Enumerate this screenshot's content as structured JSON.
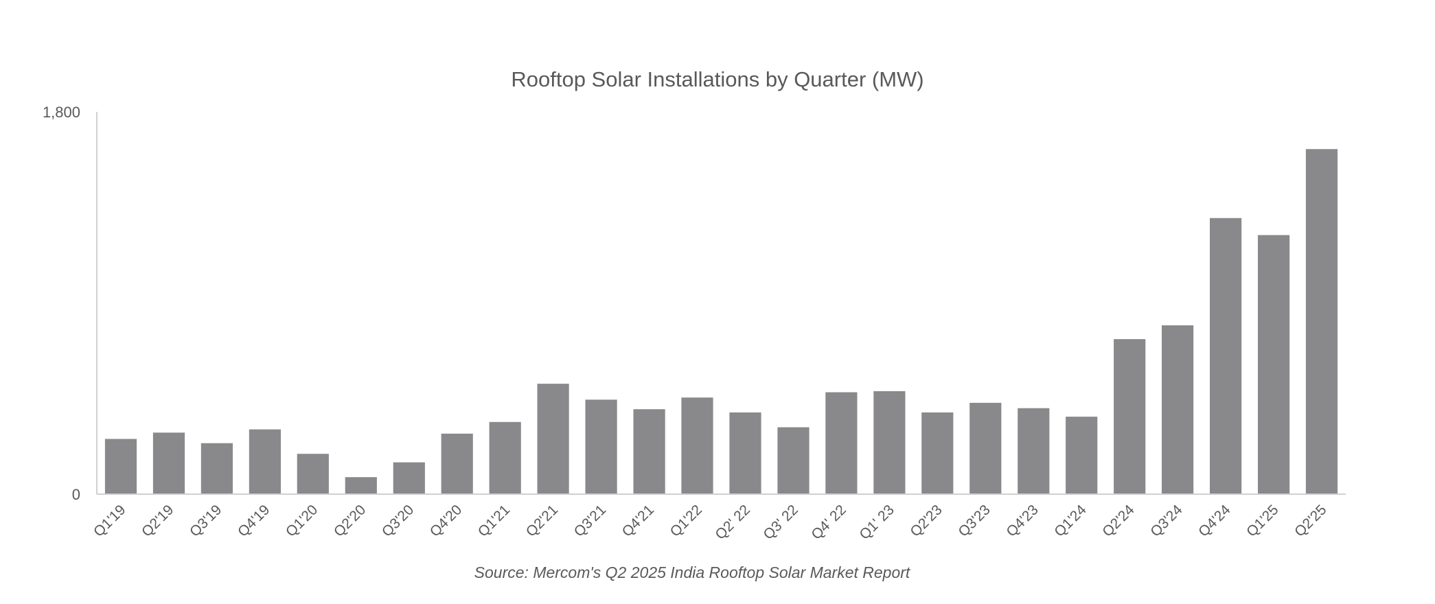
{
  "chart_data": {
    "type": "bar",
    "title": "Rooftop Solar Installations by Quarter (MW)",
    "source": "Source: Mercom's Q2 2025  India Rooftop Solar Market Report",
    "xlabel": "",
    "ylabel": "",
    "ylim": [
      0,
      1800
    ],
    "yticks": [
      {
        "value": 0,
        "label": "0"
      },
      {
        "value": 1800,
        "label": "1,800"
      }
    ],
    "grid": false,
    "legend": "none",
    "bar_color": "#89898c",
    "axis_color": "#d0d0d0",
    "categories": [
      "Q1'19",
      "Q2'19",
      "Q3'19",
      "Q4'19",
      "Q1'20",
      "Q2'20",
      "Q3'20",
      "Q4'20",
      "Q1'21",
      "Q2'21",
      "Q3'21",
      "Q4'21",
      "Q1'22",
      "Q2' 22",
      "Q3' 22",
      "Q4' 22",
      "Q1' 23",
      "Q2'23",
      "Q3'23",
      "Q4'23",
      "Q1'24",
      "Q2'24",
      "Q3'24",
      "Q4'24",
      "Q1'25",
      "Q2'25"
    ],
    "values": [
      260,
      290,
      240,
      305,
      190,
      80,
      150,
      285,
      340,
      520,
      445,
      400,
      455,
      385,
      315,
      480,
      485,
      385,
      430,
      405,
      365,
      730,
      795,
      1300,
      1220,
      1625
    ]
  }
}
